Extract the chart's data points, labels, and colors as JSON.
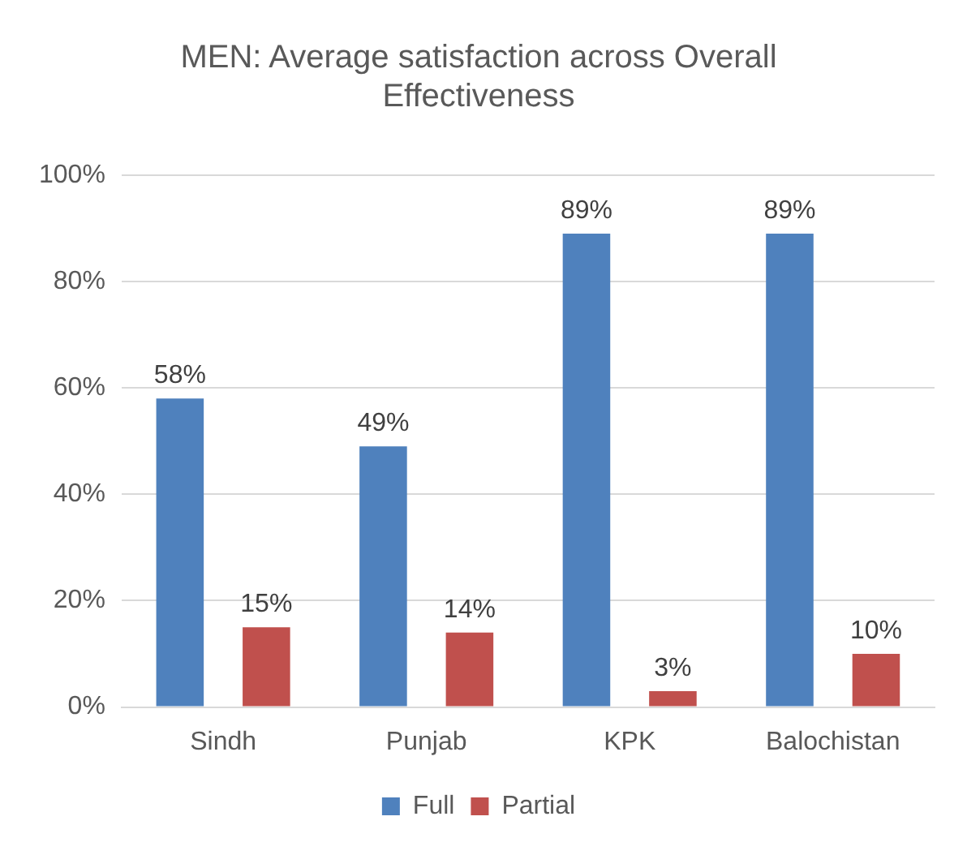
{
  "chart_data": {
    "type": "bar",
    "title": "MEN: Average satisfaction across Overall Effectiveness",
    "categories": [
      "Sindh",
      "Punjab",
      "KPK",
      "Balochistan"
    ],
    "series": [
      {
        "name": "Full",
        "color": "#4f81bd",
        "values": [
          58,
          49,
          89,
          89
        ],
        "value_labels": [
          "58%",
          "49%",
          "89%",
          "89%"
        ]
      },
      {
        "name": "Partial",
        "color": "#c0504d",
        "values": [
          15,
          14,
          3,
          10
        ],
        "value_labels": [
          "15%",
          "14%",
          "3%",
          "10%"
        ]
      }
    ],
    "ylim": [
      0,
      100
    ],
    "yticks": [
      {
        "value": 0,
        "label": "0%"
      },
      {
        "value": 20,
        "label": "20%"
      },
      {
        "value": 40,
        "label": "40%"
      },
      {
        "value": 60,
        "label": "60%"
      },
      {
        "value": 80,
        "label": "80%"
      },
      {
        "value": 100,
        "label": "100%"
      }
    ],
    "grid": "y",
    "legend": "bottom"
  }
}
